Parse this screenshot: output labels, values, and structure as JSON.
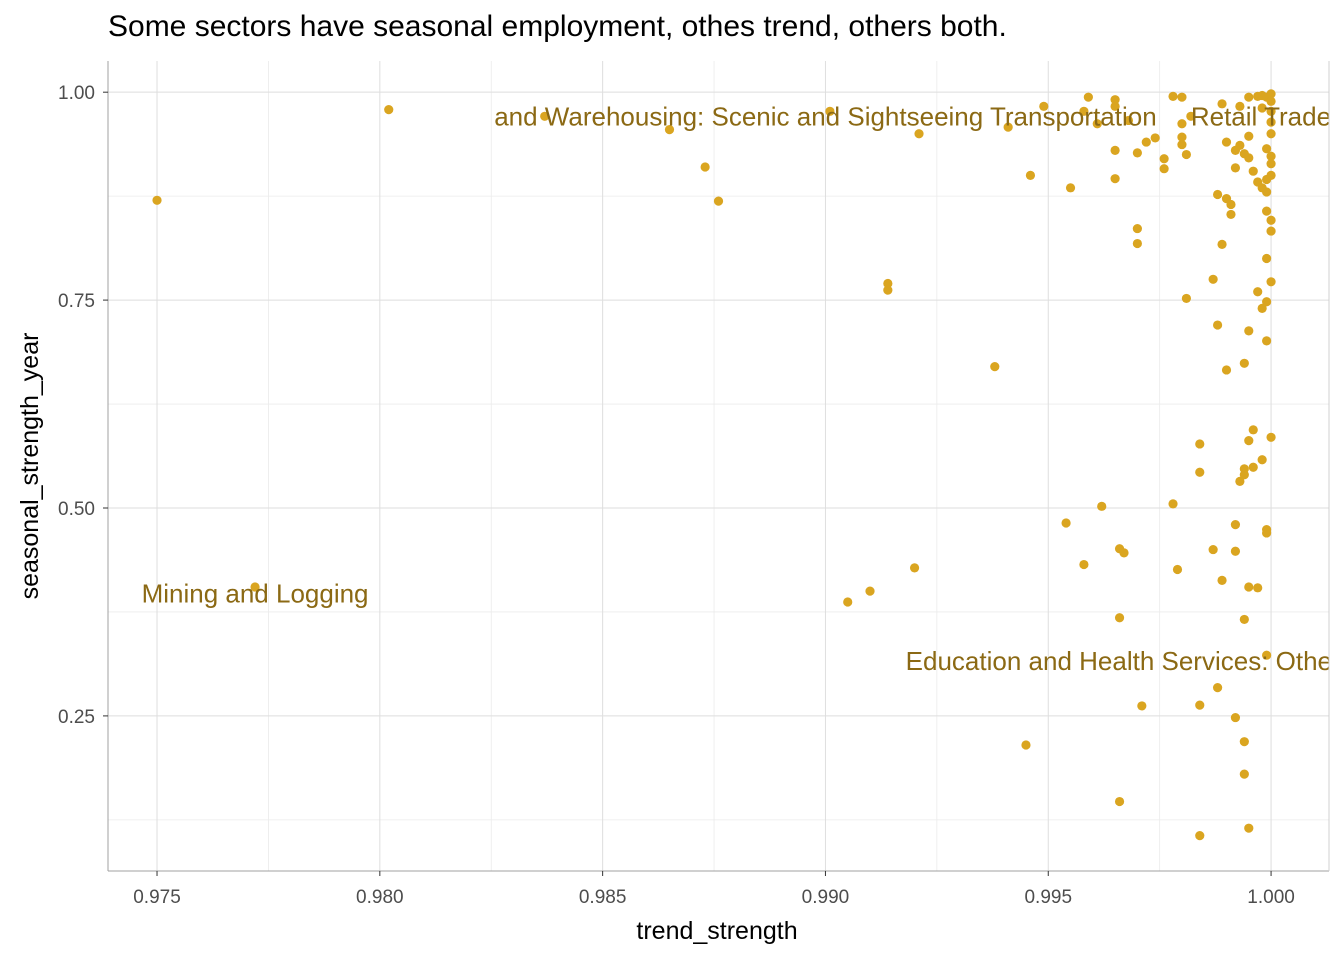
{
  "chart_data": {
    "type": "scatter",
    "title": "Some sectors have seasonal employment, othes trend, others both.",
    "xlabel": "trend_strength",
    "ylabel": "seasonal_strength_year",
    "xlim": [
      0.9739,
      1.0013
    ],
    "ylim": [
      0.0635,
      1.0375
    ],
    "x_ticks": [
      0.975,
      0.98,
      0.985,
      0.99,
      0.995,
      1.0
    ],
    "x_tick_labels": [
      "0.975",
      "0.980",
      "0.985",
      "0.990",
      "0.995",
      "1.000"
    ],
    "y_ticks": [
      0.25,
      0.5,
      0.75,
      1.0
    ],
    "y_tick_labels": [
      "0.25",
      "0.50",
      "0.75",
      "1.00"
    ],
    "grid": true,
    "point_color": "#DAA520",
    "label_color": "#8B6914",
    "annotations": [
      {
        "text": "and Warehousing: Scenic and Sightseeing Transportation",
        "x": 0.99,
        "y": 0.971,
        "anchor": "center"
      },
      {
        "text": "Retail Trade",
        "x": 0.9982,
        "y": 0.971,
        "anchor": "start"
      },
      {
        "text": "Mining and Logging",
        "x": 0.9772,
        "y": 0.397,
        "anchor": "center"
      },
      {
        "text": "Education and Health Services: Other",
        "x": 0.9918,
        "y": 0.316,
        "anchor": "start"
      }
    ],
    "points": [
      {
        "x": 0.975,
        "y": 0.87
      },
      {
        "x": 0.9772,
        "y": 0.405
      },
      {
        "x": 0.9802,
        "y": 0.979
      },
      {
        "x": 0.9837,
        "y": 0.971
      },
      {
        "x": 0.9865,
        "y": 0.955
      },
      {
        "x": 0.9873,
        "y": 0.91
      },
      {
        "x": 0.9876,
        "y": 0.869
      },
      {
        "x": 0.9901,
        "y": 0.977
      },
      {
        "x": 0.9905,
        "y": 0.387
      },
      {
        "x": 0.991,
        "y": 0.4
      },
      {
        "x": 0.9914,
        "y": 0.77
      },
      {
        "x": 0.9914,
        "y": 0.762
      },
      {
        "x": 0.992,
        "y": 0.428
      },
      {
        "x": 0.9921,
        "y": 0.95
      },
      {
        "x": 0.9938,
        "y": 0.67
      },
      {
        "x": 0.9941,
        "y": 0.958
      },
      {
        "x": 0.9945,
        "y": 0.215
      },
      {
        "x": 0.9946,
        "y": 0.9
      },
      {
        "x": 0.9949,
        "y": 0.983
      },
      {
        "x": 0.9954,
        "y": 0.482
      },
      {
        "x": 0.9955,
        "y": 0.885
      },
      {
        "x": 0.9958,
        "y": 0.977
      },
      {
        "x": 0.9958,
        "y": 0.432
      },
      {
        "x": 0.9959,
        "y": 0.994
      },
      {
        "x": 0.9961,
        "y": 0.962
      },
      {
        "x": 0.9962,
        "y": 0.502
      },
      {
        "x": 0.9965,
        "y": 0.991
      },
      {
        "x": 0.9965,
        "y": 0.983
      },
      {
        "x": 0.9965,
        "y": 0.93
      },
      {
        "x": 0.9965,
        "y": 0.896
      },
      {
        "x": 0.9966,
        "y": 0.451
      },
      {
        "x": 0.9966,
        "y": 0.368
      },
      {
        "x": 0.9966,
        "y": 0.147
      },
      {
        "x": 0.9967,
        "y": 0.446
      },
      {
        "x": 0.9968,
        "y": 0.966
      },
      {
        "x": 0.997,
        "y": 0.836
      },
      {
        "x": 0.997,
        "y": 0.818
      },
      {
        "x": 0.997,
        "y": 0.927
      },
      {
        "x": 0.9971,
        "y": 0.262
      },
      {
        "x": 0.9972,
        "y": 0.94
      },
      {
        "x": 0.9974,
        "y": 0.945
      },
      {
        "x": 0.9976,
        "y": 0.92
      },
      {
        "x": 0.9976,
        "y": 0.908
      },
      {
        "x": 0.9978,
        "y": 0.995
      },
      {
        "x": 0.9978,
        "y": 0.505
      },
      {
        "x": 0.9979,
        "y": 0.426
      },
      {
        "x": 0.998,
        "y": 0.994
      },
      {
        "x": 0.998,
        "y": 0.946
      },
      {
        "x": 0.998,
        "y": 0.937
      },
      {
        "x": 0.998,
        "y": 0.962
      },
      {
        "x": 0.9981,
        "y": 0.925
      },
      {
        "x": 0.9981,
        "y": 0.752
      },
      {
        "x": 0.9982,
        "y": 0.971
      },
      {
        "x": 0.9984,
        "y": 0.577
      },
      {
        "x": 0.9984,
        "y": 0.543
      },
      {
        "x": 0.9984,
        "y": 0.263
      },
      {
        "x": 0.9984,
        "y": 0.106
      },
      {
        "x": 0.9987,
        "y": 0.775
      },
      {
        "x": 0.9987,
        "y": 0.45
      },
      {
        "x": 0.9988,
        "y": 0.877
      },
      {
        "x": 0.9988,
        "y": 0.72
      },
      {
        "x": 0.9988,
        "y": 0.284
      },
      {
        "x": 0.9989,
        "y": 0.986
      },
      {
        "x": 0.9989,
        "y": 0.817
      },
      {
        "x": 0.9989,
        "y": 0.413
      },
      {
        "x": 0.999,
        "y": 0.94
      },
      {
        "x": 0.999,
        "y": 0.872
      },
      {
        "x": 0.999,
        "y": 0.666
      },
      {
        "x": 0.9991,
        "y": 0.865
      },
      {
        "x": 0.9991,
        "y": 0.853
      },
      {
        "x": 0.9992,
        "y": 0.93
      },
      {
        "x": 0.9992,
        "y": 0.909
      },
      {
        "x": 0.9992,
        "y": 0.48
      },
      {
        "x": 0.9992,
        "y": 0.448
      },
      {
        "x": 0.9992,
        "y": 0.248
      },
      {
        "x": 0.9993,
        "y": 0.983
      },
      {
        "x": 0.9993,
        "y": 0.532
      },
      {
        "x": 0.9993,
        "y": 0.936
      },
      {
        "x": 0.9994,
        "y": 0.926
      },
      {
        "x": 0.9994,
        "y": 0.674
      },
      {
        "x": 0.9994,
        "y": 0.547
      },
      {
        "x": 0.9994,
        "y": 0.54
      },
      {
        "x": 0.9994,
        "y": 0.366
      },
      {
        "x": 0.9994,
        "y": 0.219
      },
      {
        "x": 0.9994,
        "y": 0.18
      },
      {
        "x": 0.9995,
        "y": 0.994
      },
      {
        "x": 0.9995,
        "y": 0.947
      },
      {
        "x": 0.9995,
        "y": 0.921
      },
      {
        "x": 0.9995,
        "y": 0.713
      },
      {
        "x": 0.9995,
        "y": 0.581
      },
      {
        "x": 0.9995,
        "y": 0.405
      },
      {
        "x": 0.9995,
        "y": 0.115
      },
      {
        "x": 0.9996,
        "y": 0.905
      },
      {
        "x": 0.9996,
        "y": 0.594
      },
      {
        "x": 0.9996,
        "y": 0.549
      },
      {
        "x": 0.9997,
        "y": 0.995
      },
      {
        "x": 0.9997,
        "y": 0.892
      },
      {
        "x": 0.9997,
        "y": 0.76
      },
      {
        "x": 0.9997,
        "y": 0.404
      },
      {
        "x": 0.9998,
        "y": 0.996
      },
      {
        "x": 0.9998,
        "y": 0.981
      },
      {
        "x": 0.9998,
        "y": 0.885
      },
      {
        "x": 0.9998,
        "y": 0.74
      },
      {
        "x": 0.9998,
        "y": 0.558
      },
      {
        "x": 0.9999,
        "y": 0.994
      },
      {
        "x": 0.9999,
        "y": 0.932
      },
      {
        "x": 0.9999,
        "y": 0.895
      },
      {
        "x": 0.9999,
        "y": 0.88
      },
      {
        "x": 0.9999,
        "y": 0.857
      },
      {
        "x": 0.9999,
        "y": 0.8
      },
      {
        "x": 0.9999,
        "y": 0.748
      },
      {
        "x": 0.9999,
        "y": 0.701
      },
      {
        "x": 0.9999,
        "y": 0.474
      },
      {
        "x": 0.9999,
        "y": 0.47
      },
      {
        "x": 0.9999,
        "y": 0.323
      },
      {
        "x": 1.0,
        "y": 0.998
      },
      {
        "x": 1.0,
        "y": 0.989
      },
      {
        "x": 1.0,
        "y": 0.977
      },
      {
        "x": 1.0,
        "y": 0.964
      },
      {
        "x": 1.0,
        "y": 0.95
      },
      {
        "x": 1.0,
        "y": 0.923
      },
      {
        "x": 1.0,
        "y": 0.914
      },
      {
        "x": 1.0,
        "y": 0.9
      },
      {
        "x": 1.0,
        "y": 0.846
      },
      {
        "x": 1.0,
        "y": 0.833
      },
      {
        "x": 1.0,
        "y": 0.772
      },
      {
        "x": 1.0,
        "y": 0.585
      }
    ]
  }
}
